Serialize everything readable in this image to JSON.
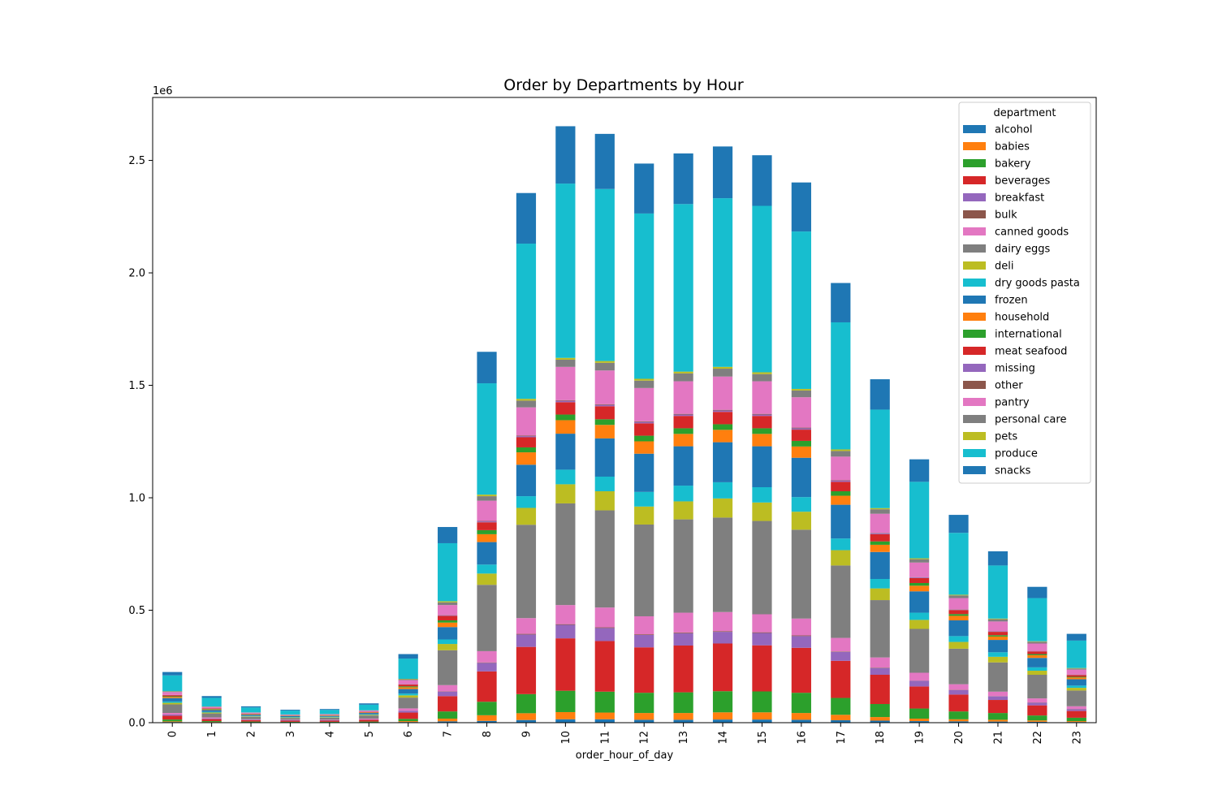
{
  "chart_data": {
    "type": "bar",
    "stacked": true,
    "title": "Order by Departments by Hour",
    "xlabel": "order_hour_of_day",
    "ylabel": "",
    "y_offset_label": "1e6",
    "y_multiplier": 1000000,
    "ylim": [
      0,
      2.78
    ],
    "yticks": [
      0.0,
      0.5,
      1.0,
      1.5,
      2.0,
      2.5
    ],
    "ytick_labels": [
      "0.0",
      "0.5",
      "1.0",
      "1.5",
      "2.0",
      "2.5"
    ],
    "categories": [
      "0",
      "1",
      "2",
      "3",
      "4",
      "5",
      "6",
      "7",
      "8",
      "9",
      "10",
      "11",
      "12",
      "13",
      "14",
      "15",
      "16",
      "17",
      "18",
      "19",
      "20",
      "21",
      "22",
      "23"
    ],
    "legend": {
      "title": "department",
      "placement": "upper right"
    },
    "series": [
      {
        "name": "alcohol",
        "color": "#1f77b4",
        "values": [
          0.003,
          0.002,
          0.001,
          0.001,
          0.001,
          0.001,
          0.003,
          0.006,
          0.008,
          0.012,
          0.015,
          0.015,
          0.013,
          0.013,
          0.014,
          0.014,
          0.013,
          0.011,
          0.009,
          0.007,
          0.006,
          0.005,
          0.004,
          0.003
        ]
      },
      {
        "name": "babies",
        "color": "#ff7f0e",
        "values": [
          0.003,
          0.001,
          0.001,
          0.001,
          0.001,
          0.001,
          0.004,
          0.012,
          0.025,
          0.03,
          0.032,
          0.03,
          0.03,
          0.03,
          0.032,
          0.032,
          0.03,
          0.024,
          0.016,
          0.011,
          0.009,
          0.008,
          0.006,
          0.004
        ]
      },
      {
        "name": "bakery",
        "color": "#2ca02c",
        "values": [
          0.008,
          0.004,
          0.003,
          0.002,
          0.002,
          0.003,
          0.01,
          0.032,
          0.06,
          0.085,
          0.095,
          0.093,
          0.09,
          0.092,
          0.094,
          0.093,
          0.09,
          0.075,
          0.058,
          0.045,
          0.035,
          0.03,
          0.022,
          0.015
        ]
      },
      {
        "name": "beverages",
        "color": "#d62728",
        "values": [
          0.017,
          0.009,
          0.006,
          0.005,
          0.005,
          0.008,
          0.028,
          0.068,
          0.135,
          0.21,
          0.233,
          0.225,
          0.202,
          0.208,
          0.212,
          0.205,
          0.2,
          0.165,
          0.13,
          0.098,
          0.075,
          0.058,
          0.045,
          0.03
        ]
      },
      {
        "name": "breakfast",
        "color": "#9467bd",
        "values": [
          0.005,
          0.003,
          0.002,
          0.002,
          0.002,
          0.002,
          0.008,
          0.02,
          0.038,
          0.055,
          0.06,
          0.058,
          0.055,
          0.055,
          0.052,
          0.055,
          0.052,
          0.04,
          0.03,
          0.025,
          0.02,
          0.016,
          0.012,
          0.008
        ]
      },
      {
        "name": "bulk",
        "color": "#8c564b",
        "values": [
          0.0003,
          0.0002,
          0.0001,
          0.0001,
          0.0001,
          0.0001,
          0.0005,
          0.001,
          0.002,
          0.003,
          0.003,
          0.003,
          0.003,
          0.003,
          0.003,
          0.003,
          0.003,
          0.002,
          0.002,
          0.001,
          0.001,
          0.001,
          0.001,
          0.001
        ]
      },
      {
        "name": "canned goods",
        "color": "#e377c2",
        "values": [
          0.007,
          0.004,
          0.002,
          0.002,
          0.002,
          0.003,
          0.01,
          0.028,
          0.05,
          0.07,
          0.085,
          0.088,
          0.08,
          0.088,
          0.085,
          0.08,
          0.075,
          0.06,
          0.045,
          0.035,
          0.025,
          0.02,
          0.018,
          0.012
        ]
      },
      {
        "name": "dairy eggs",
        "color": "#7f7f7f",
        "values": [
          0.038,
          0.018,
          0.011,
          0.008,
          0.009,
          0.014,
          0.048,
          0.155,
          0.295,
          0.415,
          0.452,
          0.432,
          0.408,
          0.415,
          0.42,
          0.415,
          0.395,
          0.322,
          0.255,
          0.195,
          0.158,
          0.13,
          0.105,
          0.07
        ]
      },
      {
        "name": "deli",
        "color": "#bcbd22",
        "values": [
          0.007,
          0.004,
          0.002,
          0.002,
          0.002,
          0.003,
          0.01,
          0.028,
          0.05,
          0.075,
          0.085,
          0.085,
          0.08,
          0.08,
          0.085,
          0.082,
          0.08,
          0.068,
          0.052,
          0.04,
          0.03,
          0.025,
          0.018,
          0.012
        ]
      },
      {
        "name": "dry goods pasta",
        "color": "#17becf",
        "values": [
          0.006,
          0.003,
          0.002,
          0.002,
          0.002,
          0.002,
          0.008,
          0.02,
          0.04,
          0.052,
          0.065,
          0.065,
          0.065,
          0.07,
          0.072,
          0.068,
          0.065,
          0.052,
          0.042,
          0.032,
          0.026,
          0.02,
          0.015,
          0.01
        ]
      },
      {
        "name": "frozen",
        "color": "#1f77b4",
        "values": [
          0.015,
          0.008,
          0.005,
          0.004,
          0.004,
          0.006,
          0.02,
          0.055,
          0.1,
          0.14,
          0.16,
          0.17,
          0.17,
          0.175,
          0.178,
          0.182,
          0.175,
          0.15,
          0.12,
          0.095,
          0.07,
          0.055,
          0.042,
          0.028
        ]
      },
      {
        "name": "household",
        "color": "#ff7f0e",
        "values": [
          0.005,
          0.003,
          0.002,
          0.001,
          0.002,
          0.002,
          0.008,
          0.02,
          0.035,
          0.055,
          0.06,
          0.06,
          0.055,
          0.055,
          0.055,
          0.055,
          0.05,
          0.04,
          0.032,
          0.025,
          0.02,
          0.015,
          0.012,
          0.008
        ]
      },
      {
        "name": "international",
        "color": "#2ca02c",
        "values": [
          0.003,
          0.002,
          0.001,
          0.001,
          0.001,
          0.001,
          0.004,
          0.01,
          0.018,
          0.022,
          0.025,
          0.025,
          0.025,
          0.025,
          0.025,
          0.025,
          0.025,
          0.02,
          0.015,
          0.012,
          0.008,
          0.006,
          0.005,
          0.003
        ]
      },
      {
        "name": "meat seafood",
        "color": "#d62728",
        "values": [
          0.005,
          0.002,
          0.002,
          0.001,
          0.001,
          0.002,
          0.008,
          0.02,
          0.035,
          0.045,
          0.055,
          0.058,
          0.055,
          0.055,
          0.055,
          0.055,
          0.05,
          0.042,
          0.032,
          0.022,
          0.018,
          0.015,
          0.012,
          0.008
        ]
      },
      {
        "name": "missing",
        "color": "#9467bd",
        "values": [
          0.0007,
          0.0004,
          0.0002,
          0.0002,
          0.0002,
          0.0003,
          0.001,
          0.002,
          0.004,
          0.005,
          0.006,
          0.006,
          0.006,
          0.006,
          0.006,
          0.006,
          0.006,
          0.005,
          0.004,
          0.003,
          0.002,
          0.002,
          0.001,
          0.001
        ]
      },
      {
        "name": "other",
        "color": "#8c564b",
        "values": [
          0.0003,
          0.0002,
          0.0001,
          0.0001,
          0.0001,
          0.0001,
          0.0005,
          0.001,
          0.002,
          0.003,
          0.003,
          0.003,
          0.003,
          0.003,
          0.003,
          0.003,
          0.003,
          0.002,
          0.002,
          0.001,
          0.001,
          0.001,
          0.001,
          0.001
        ]
      },
      {
        "name": "pantry",
        "color": "#e377c2",
        "values": [
          0.013,
          0.006,
          0.004,
          0.003,
          0.003,
          0.005,
          0.018,
          0.045,
          0.09,
          0.125,
          0.148,
          0.15,
          0.148,
          0.145,
          0.148,
          0.145,
          0.135,
          0.105,
          0.085,
          0.065,
          0.05,
          0.043,
          0.033,
          0.022
        ]
      },
      {
        "name": "personal care",
        "color": "#7f7f7f",
        "values": [
          0.003,
          0.002,
          0.001,
          0.001,
          0.001,
          0.001,
          0.004,
          0.012,
          0.02,
          0.03,
          0.032,
          0.034,
          0.033,
          0.035,
          0.035,
          0.032,
          0.03,
          0.025,
          0.02,
          0.015,
          0.012,
          0.01,
          0.008,
          0.005
        ]
      },
      {
        "name": "pets",
        "color": "#bcbd22",
        "values": [
          0.001,
          0.0005,
          0.0003,
          0.0002,
          0.0003,
          0.0004,
          0.002,
          0.005,
          0.007,
          0.008,
          0.008,
          0.008,
          0.008,
          0.008,
          0.008,
          0.008,
          0.007,
          0.007,
          0.005,
          0.004,
          0.003,
          0.003,
          0.002,
          0.002
        ]
      },
      {
        "name": "produce",
        "color": "#17becf",
        "values": [
          0.07,
          0.038,
          0.022,
          0.017,
          0.018,
          0.025,
          0.09,
          0.258,
          0.495,
          0.69,
          0.775,
          0.765,
          0.735,
          0.745,
          0.75,
          0.74,
          0.7,
          0.565,
          0.438,
          0.34,
          0.275,
          0.236,
          0.192,
          0.122
        ]
      },
      {
        "name": "snacks",
        "color": "#1f77b4",
        "values": [
          0.015,
          0.008,
          0.005,
          0.004,
          0.004,
          0.006,
          0.02,
          0.072,
          0.14,
          0.225,
          0.255,
          0.245,
          0.222,
          0.225,
          0.23,
          0.225,
          0.218,
          0.175,
          0.135,
          0.1,
          0.08,
          0.063,
          0.05,
          0.03
        ]
      }
    ]
  }
}
